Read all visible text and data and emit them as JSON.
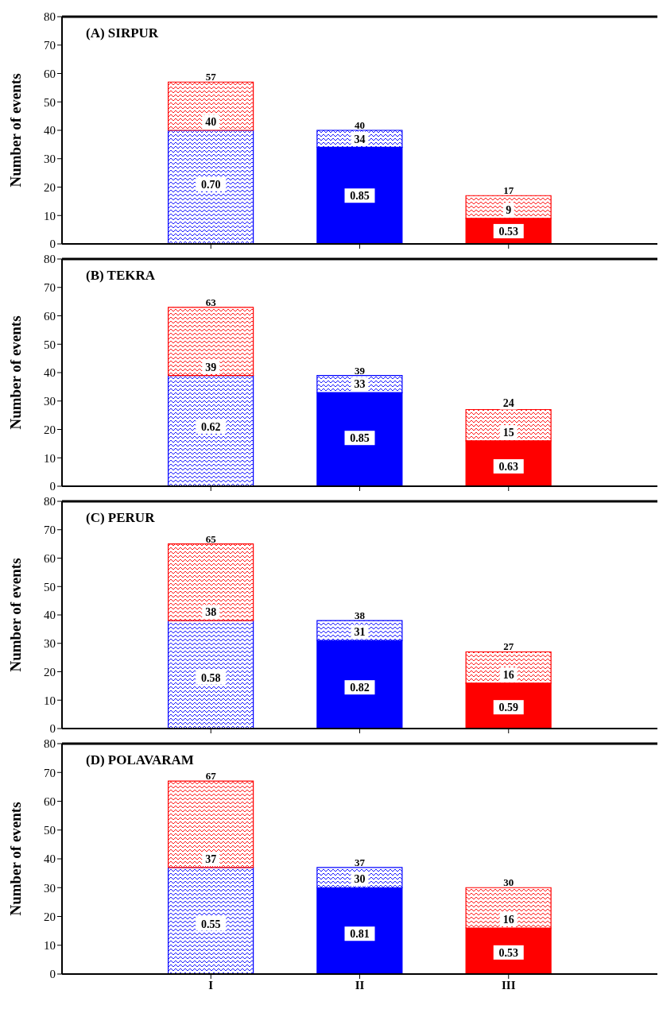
{
  "chart_data": [
    {
      "type": "bar",
      "title": "(A) SIRPUR",
      "ylabel": "Number of events",
      "categories": [
        "I",
        "II",
        "III"
      ],
      "stacked": true,
      "ylim": [
        0,
        80
      ],
      "yticks": [
        0,
        10,
        20,
        30,
        40,
        50,
        60,
        70,
        80
      ],
      "tick_labels": "y",
      "series": [
        {
          "values": [
            null,
            34,
            9
          ],
          "colors": [
            "#0000ff",
            "#0000ff",
            "#ff0000"
          ]
        },
        {
          "values": [
            40,
            6,
            null
          ],
          "colors": [
            "#0000ff",
            "#0000ff",
            "#0000ff"
          ]
        },
        {
          "values": [
            17,
            null,
            8
          ],
          "colors": [
            "#ff0000",
            "#ff0000",
            "#ff0000"
          ]
        }
      ],
      "totals": [
        "57",
        "40",
        "17"
      ],
      "annotations": [
        {
          "text": "40",
          "x": "I",
          "y": 43
        },
        {
          "text": "34",
          "x": "II",
          "y": 37
        },
        {
          "text": "9",
          "x": "III",
          "y": 12
        },
        {
          "text": "0.70",
          "x": "I",
          "y": 21
        },
        {
          "text": "0.85",
          "x": "II",
          "y": 17
        },
        {
          "text": "0.53",
          "x": "III",
          "y": 4.5
        }
      ]
    },
    {
      "type": "bar",
      "title": "(B) TEKRA",
      "ylabel": "Number of events",
      "categories": [
        "I",
        "II",
        "III"
      ],
      "stacked": true,
      "ylim": [
        0,
        80
      ],
      "yticks": [
        0,
        10,
        20,
        30,
        40,
        50,
        60,
        70,
        80
      ],
      "tick_labels": "y",
      "series": [
        {
          "values": [
            null,
            33,
            16
          ],
          "colors": [
            "#0000ff",
            "#0000ff",
            "#ff0000"
          ]
        },
        {
          "values": [
            39,
            6,
            null
          ],
          "colors": [
            "#0000ff",
            "#0000ff",
            "#0000ff"
          ]
        },
        {
          "values": [
            24,
            null,
            11
          ],
          "colors": [
            "#ff0000",
            "#ff0000",
            "#ff0000"
          ]
        }
      ],
      "totals": [
        "63",
        "39",
        null
      ],
      "annotations": [
        {
          "text": "24",
          "x": "III",
          "y": 29.5
        },
        {
          "text": "39",
          "x": "I",
          "y": 42
        },
        {
          "text": "33",
          "x": "II",
          "y": 36
        },
        {
          "text": "15",
          "x": "III",
          "y": 19
        },
        {
          "text": "0.62",
          "x": "I",
          "y": 21
        },
        {
          "text": "0.85",
          "x": "II",
          "y": 17
        },
        {
          "text": "0.63",
          "x": "III",
          "y": 7
        }
      ]
    },
    {
      "type": "bar",
      "title": "(C) PERUR",
      "ylabel": "Number of events",
      "categories": [
        "I",
        "II",
        "III"
      ],
      "stacked": true,
      "ylim": [
        0,
        80
      ],
      "yticks": [
        0,
        10,
        20,
        30,
        40,
        50,
        60,
        70,
        80
      ],
      "tick_labels": "y",
      "series": [
        {
          "values": [
            null,
            31,
            16
          ],
          "colors": [
            "#0000ff",
            "#0000ff",
            "#ff0000"
          ]
        },
        {
          "values": [
            38,
            7,
            null
          ],
          "colors": [
            "#0000ff",
            "#0000ff",
            "#0000ff"
          ]
        },
        {
          "values": [
            27,
            null,
            11
          ],
          "colors": [
            "#ff0000",
            "#ff0000",
            "#ff0000"
          ]
        }
      ],
      "totals": [
        "65",
        "38",
        "27"
      ],
      "annotations": [
        {
          "text": "38",
          "x": "I",
          "y": 41
        },
        {
          "text": "31",
          "x": "II",
          "y": 34
        },
        {
          "text": "16",
          "x": "III",
          "y": 19
        },
        {
          "text": "0.58",
          "x": "I",
          "y": 18
        },
        {
          "text": "0.82",
          "x": "II",
          "y": 14.5
        },
        {
          "text": "0.59",
          "x": "III",
          "y": 7.5
        }
      ]
    },
    {
      "type": "bar",
      "title": "(D) POLAVARAM",
      "ylabel": "Number of events",
      "categories": [
        "I",
        "II",
        "III"
      ],
      "stacked": true,
      "ylim": [
        0,
        80
      ],
      "yticks": [
        0,
        10,
        20,
        30,
        40,
        50,
        60,
        70,
        80
      ],
      "series": [
        {
          "values": [
            null,
            30,
            16
          ],
          "colors": [
            "#0000ff",
            "#0000ff",
            "#ff0000"
          ]
        },
        {
          "values": [
            37,
            7,
            null
          ],
          "colors": [
            "#0000ff",
            "#0000ff",
            "#0000ff"
          ]
        },
        {
          "values": [
            30,
            null,
            14
          ],
          "colors": [
            "#ff0000",
            "#ff0000",
            "#ff0000"
          ]
        }
      ],
      "totals": [
        "67",
        "37",
        "30"
      ],
      "annotations": [
        {
          "text": "37",
          "x": "I",
          "y": 40
        },
        {
          "text": "30",
          "x": "II",
          "y": 33
        },
        {
          "text": "16",
          "x": "III",
          "y": 19
        },
        {
          "text": "0.55",
          "x": "I",
          "y": 17.5
        },
        {
          "text": "0.81",
          "x": "II",
          "y": 14
        },
        {
          "text": "0.53",
          "x": "III",
          "y": 7.5
        }
      ]
    }
  ]
}
